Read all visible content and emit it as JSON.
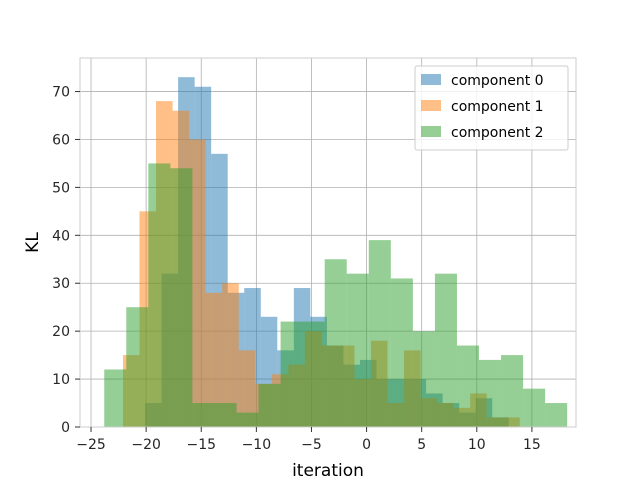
{
  "chart_data": {
    "type": "histogram",
    "xlabel": "iteration",
    "ylabel": "KL",
    "xlim": [
      -26.0,
      19.0
    ],
    "ylim": [
      0,
      77
    ],
    "xticks": [
      -25,
      -20,
      -15,
      -10,
      -5,
      0,
      5,
      10,
      15
    ],
    "yticks": [
      0,
      10,
      20,
      30,
      40,
      50,
      60,
      70
    ],
    "grid": true,
    "legend_position": "upper-right",
    "series": [
      {
        "name": "component 0",
        "color": "#1f77b4",
        "alpha": 0.5,
        "bins": [
          [
            -20.1,
            -18.6,
            5
          ],
          [
            -18.6,
            -17.1,
            32
          ],
          [
            -17.1,
            -15.6,
            73
          ],
          [
            -15.6,
            -14.1,
            71
          ],
          [
            -14.1,
            -12.6,
            57
          ],
          [
            -12.6,
            -11.1,
            28
          ],
          [
            -11.1,
            -9.6,
            29
          ],
          [
            -9.6,
            -8.1,
            23
          ],
          [
            -8.1,
            -6.6,
            16
          ],
          [
            -6.6,
            -5.1,
            29
          ],
          [
            -5.1,
            -3.6,
            23
          ],
          [
            -3.6,
            -2.1,
            17
          ],
          [
            -2.1,
            -0.6,
            13
          ],
          [
            -0.6,
            0.9,
            14
          ],
          [
            0.9,
            2.4,
            10
          ],
          [
            2.4,
            3.9,
            10
          ],
          [
            3.9,
            5.4,
            10
          ],
          [
            5.4,
            6.9,
            7
          ],
          [
            6.9,
            8.4,
            5
          ],
          [
            8.4,
            9.9,
            3
          ],
          [
            9.9,
            11.4,
            6
          ],
          [
            11.4,
            12.9,
            2
          ]
        ]
      },
      {
        "name": "component 1",
        "color": "#ff7f0e",
        "alpha": 0.5,
        "bins": [
          [
            -22.1,
            -20.6,
            15
          ],
          [
            -20.6,
            -19.1,
            45
          ],
          [
            -19.1,
            -17.6,
            68
          ],
          [
            -17.6,
            -16.1,
            66
          ],
          [
            -16.1,
            -14.6,
            60
          ],
          [
            -14.6,
            -13.1,
            28
          ],
          [
            -13.1,
            -11.6,
            30
          ],
          [
            -11.6,
            -10.1,
            16
          ],
          [
            -10.1,
            -8.6,
            9
          ],
          [
            -8.6,
            -7.1,
            11
          ],
          [
            -7.1,
            -5.6,
            13
          ],
          [
            -5.6,
            -4.1,
            20
          ],
          [
            -4.1,
            -2.6,
            17
          ],
          [
            -2.6,
            -1.1,
            17
          ],
          [
            -1.1,
            0.4,
            10
          ],
          [
            0.4,
            1.9,
            18
          ],
          [
            1.9,
            3.4,
            5
          ],
          [
            3.4,
            4.9,
            16
          ],
          [
            4.9,
            6.4,
            6
          ],
          [
            6.4,
            7.9,
            5
          ],
          [
            7.9,
            9.4,
            4
          ],
          [
            9.4,
            10.9,
            7
          ],
          [
            10.9,
            12.4,
            2
          ],
          [
            12.4,
            13.9,
            2
          ]
        ]
      },
      {
        "name": "component 2",
        "color": "#2ca02c",
        "alpha": 0.5,
        "bins": [
          [
            -23.8,
            -21.8,
            12
          ],
          [
            -21.8,
            -19.8,
            25
          ],
          [
            -19.8,
            -17.8,
            55
          ],
          [
            -17.8,
            -15.8,
            54
          ],
          [
            -15.8,
            -13.8,
            5
          ],
          [
            -13.8,
            -11.8,
            5
          ],
          [
            -11.8,
            -9.8,
            3
          ],
          [
            -9.8,
            -7.8,
            9
          ],
          [
            -7.8,
            -5.8,
            22
          ],
          [
            -5.8,
            -3.8,
            22
          ],
          [
            -3.8,
            -1.8,
            35
          ],
          [
            -1.8,
            0.2,
            32
          ],
          [
            0.2,
            2.2,
            39
          ],
          [
            2.2,
            4.2,
            31
          ],
          [
            4.2,
            6.2,
            20
          ],
          [
            6.2,
            8.2,
            32
          ],
          [
            8.2,
            10.2,
            17
          ],
          [
            10.2,
            12.2,
            14
          ],
          [
            12.2,
            14.2,
            15
          ],
          [
            14.2,
            16.2,
            8
          ],
          [
            16.2,
            18.2,
            5
          ]
        ]
      }
    ]
  }
}
